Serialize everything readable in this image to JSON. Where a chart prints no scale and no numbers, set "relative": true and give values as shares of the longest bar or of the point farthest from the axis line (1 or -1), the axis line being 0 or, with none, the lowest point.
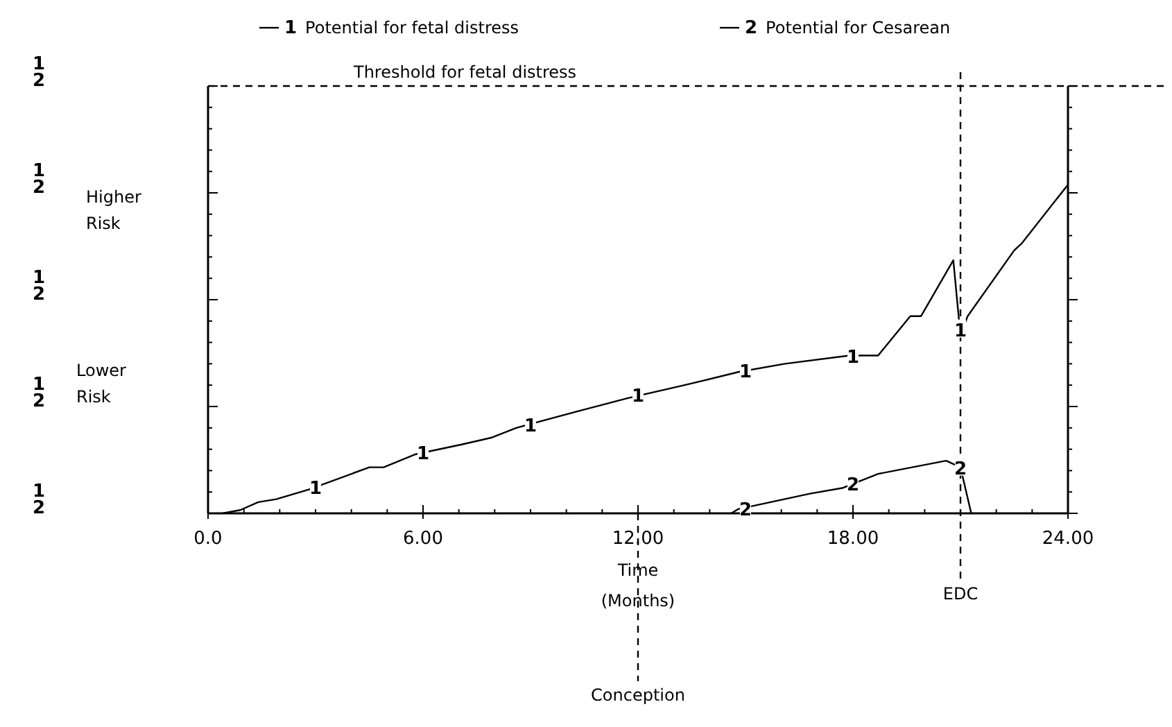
{
  "chart_data": {
    "type": "line",
    "relative": true,
    "xlabel": "Time (Months)",
    "xlim": [
      0,
      24
    ],
    "xticks": [
      {
        "value": 0,
        "label": "0.0"
      },
      {
        "value": 6,
        "label": "6.00"
      },
      {
        "value": 12,
        "label": "12.00"
      },
      {
        "value": 18,
        "label": "18.00"
      },
      {
        "value": 24,
        "label": "24.00"
      }
    ],
    "legend": "top",
    "marker": "none",
    "line_style": "solid",
    "grid": false,
    "series": [
      {
        "name": "1 Potential for fetal distress",
        "color": "#000000",
        "x": [
          0.4,
          0.9,
          1.4,
          1.9,
          2.8,
          4.5,
          4.9,
          5.8,
          7.1,
          7.9,
          8.6,
          10.3,
          11.7,
          13.3,
          14.8,
          16.1,
          17.9,
          18.7,
          19.6,
          19.9,
          20.8,
          21.0,
          21.2,
          22.5,
          22.7,
          24
        ],
        "values": [
          0,
          0.01,
          0.034,
          0.043,
          0.072,
          0.14,
          0.14,
          0.18,
          0.21,
          0.23,
          0.26,
          0.31,
          0.35,
          0.39,
          0.43,
          0.455,
          0.48,
          0.48,
          0.6,
          0.6,
          0.77,
          0.54,
          0.6,
          0.8,
          0.82,
          1.0
        ]
      },
      {
        "name": "2 Potential for Cesarean",
        "color": "#000000",
        "x": [
          14.6,
          14.8,
          16.8,
          17.7,
          18.7,
          20.6,
          21.0,
          21.3
        ],
        "values": [
          0,
          0.013,
          0.06,
          0.077,
          0.12,
          0.16,
          0.14,
          0
        ]
      }
    ],
    "ref_lines": [
      {
        "axis": "y",
        "value": 1.3,
        "label": "Threshold for fetal distress",
        "line_style": "dashed",
        "color": "#000000"
      },
      {
        "axis": "x",
        "value": 21,
        "label": "EDC",
        "line_style": "dashed",
        "color": "#000000"
      },
      {
        "axis": "x",
        "value": 12,
        "label": "Conception",
        "line_style": "dashed",
        "color": "#000000"
      }
    ],
    "annotations": [
      "1 2",
      "1 2",
      "1 2",
      "1 2",
      "1 2",
      "Higher Risk",
      "Lower Risk",
      {
        "text": "1",
        "x": 3,
        "y": 0.08
      },
      {
        "text": "1",
        "x": 6,
        "y": 0.185
      },
      {
        "text": "1",
        "x": 9,
        "y": 0.27
      },
      {
        "text": "1",
        "x": 12,
        "y": 0.36
      },
      {
        "text": "1",
        "x": 15,
        "y": 0.435
      },
      {
        "text": "1",
        "x": 18,
        "y": 0.48
      },
      {
        "text": "1",
        "x": 21,
        "y": 0.56
      },
      {
        "text": "2",
        "x": 15,
        "y": 0.015
      },
      {
        "text": "2",
        "x": 18,
        "y": 0.09
      },
      {
        "text": "2",
        "x": 21,
        "y": 0.14
      }
    ]
  }
}
